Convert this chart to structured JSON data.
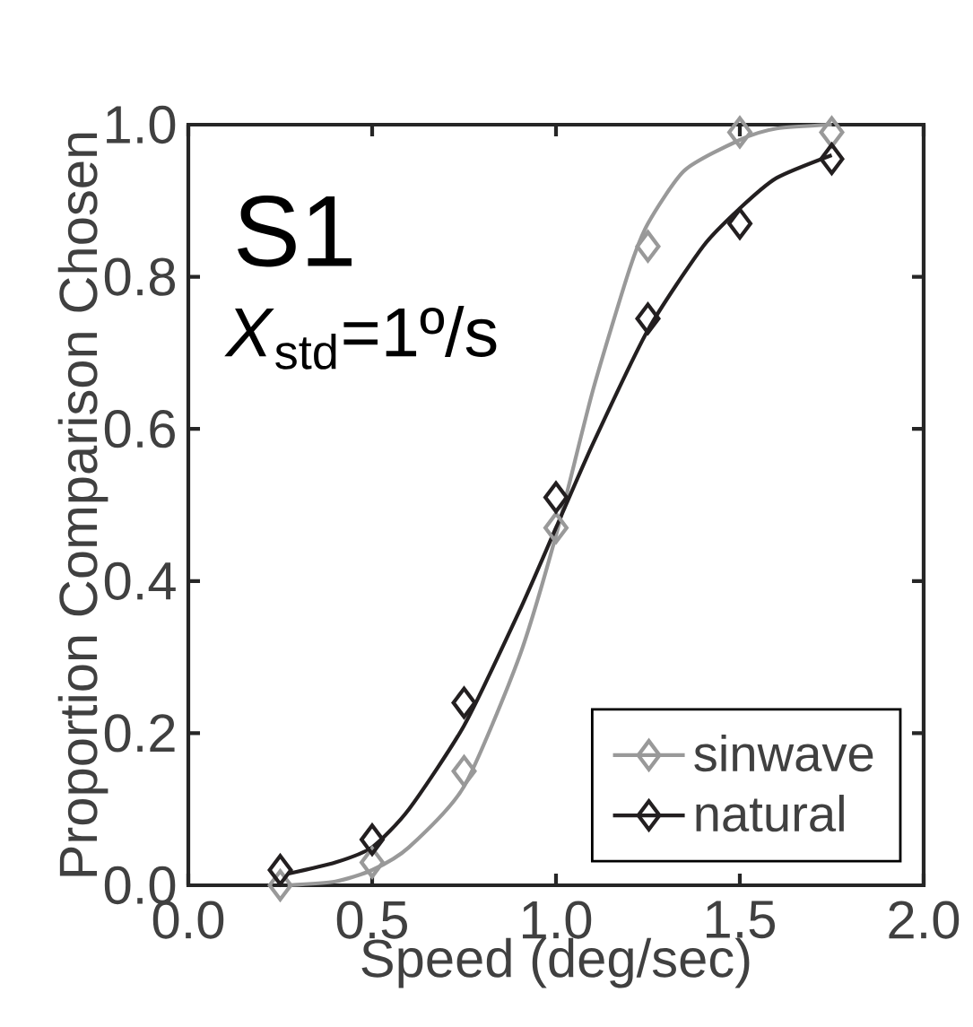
{
  "chart_data": {
    "type": "scatter",
    "xlabel": "Speed (deg/sec)",
    "ylabel": "Proportion Comparison Chosen",
    "annotations": [
      "S1",
      "*X*$_{std}$=1º/s"
    ],
    "xlim": [
      0,
      2
    ],
    "ylim": [
      0,
      1
    ],
    "xticks": [
      {
        "value": 0,
        "label": "0.0"
      },
      {
        "value": 0.5,
        "label": "0.5"
      },
      {
        "value": 1,
        "label": "1.0"
      },
      {
        "value": 1.5,
        "label": "1.5"
      },
      {
        "value": 2,
        "label": "2.0"
      }
    ],
    "yticks": [
      {
        "value": 0,
        "label": "0.0"
      },
      {
        "value": 0.2,
        "label": "0.2"
      },
      {
        "value": 0.4,
        "label": "0.4"
      },
      {
        "value": 0.6,
        "label": "0.6"
      },
      {
        "value": 0.8,
        "label": "0.8"
      },
      {
        "value": 1,
        "label": "1.0"
      }
    ],
    "marker": "diamond",
    "legend": "bottom right",
    "grid": false,
    "series": [
      {
        "name": "sinwave",
        "color": "#999999",
        "x": [
          0.25,
          0.5,
          0.75,
          1.0,
          1.25,
          1.5,
          1.75
        ],
        "values": [
          0.0,
          0.03,
          0.15,
          0.47,
          0.84,
          0.99,
          0.99
        ]
      },
      {
        "name": "natural",
        "color": "#231f20",
        "x": [
          0.25,
          0.5,
          0.75,
          1.0,
          1.25,
          1.5,
          1.75
        ],
        "values": [
          0.02,
          0.06,
          0.24,
          0.51,
          0.745,
          0.87,
          0.955
        ]
      },
      {
        "type": "line",
        "marker": "none",
        "color": "#999999",
        "x": [
          0.27,
          0.4,
          0.5,
          0.6,
          0.75,
          0.9,
          1.0,
          1.1,
          1.2,
          1.25,
          1.35,
          1.5,
          1.6,
          1.75
        ],
        "values": [
          0.0,
          0.005,
          0.02,
          0.05,
          0.13,
          0.3,
          0.46,
          0.65,
          0.81,
          0.87,
          0.94,
          0.98,
          0.995,
          1.0
        ]
      },
      {
        "type": "line",
        "marker": "none",
        "color": "#231f20",
        "x": [
          0.27,
          0.4,
          0.5,
          0.6,
          0.75,
          0.9,
          1.0,
          1.1,
          1.25,
          1.4,
          1.5,
          1.6,
          1.75
        ],
        "values": [
          0.015,
          0.03,
          0.05,
          0.1,
          0.21,
          0.36,
          0.47,
          0.58,
          0.73,
          0.84,
          0.89,
          0.93,
          0.96
        ]
      }
    ]
  }
}
